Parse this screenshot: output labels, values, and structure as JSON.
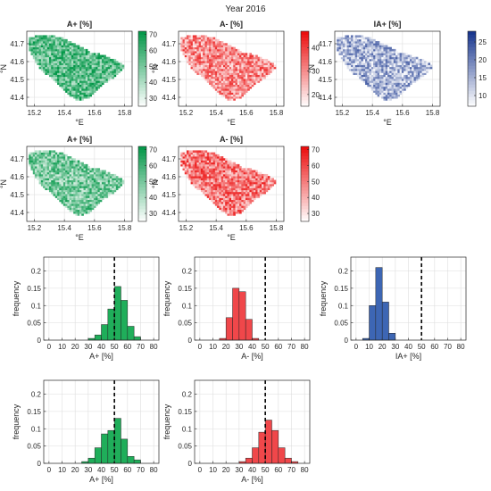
{
  "figure": {
    "title": "Year 2016"
  },
  "colors": {
    "green": "#1fae5a",
    "red": "#f0474a",
    "blue": "#3d66b4",
    "axis": "#262626",
    "grid": "#dedede",
    "dashed_line": "#000000"
  },
  "chart_data": [
    {
      "type": "heatmap",
      "id": "map_r1c1",
      "title": "A+ [%]",
      "xlabel": "°E",
      "ylabel": "°N",
      "xlim": [
        15.15,
        15.85
      ],
      "ylim": [
        41.35,
        41.77
      ],
      "xticks": [
        15.2,
        15.4,
        15.6,
        15.8
      ],
      "xtick_labels": [
        "15.2",
        "15.4",
        "15.6",
        "15.8"
      ],
      "yticks": [
        41.4,
        41.5,
        41.6,
        41.7
      ],
      "ytick_labels": [
        "41.4",
        "41.5",
        "41.6",
        "41.7"
      ],
      "colormap": "greens",
      "clim": [
        25,
        72
      ],
      "colorbar_ticks": [
        30,
        40,
        50,
        60,
        70
      ],
      "value_mean": 55,
      "grid": true
    },
    {
      "type": "heatmap",
      "id": "map_r1c2",
      "title": "A- [%]",
      "xlabel": "°E",
      "ylabel": "°N",
      "xlim": [
        15.15,
        15.85
      ],
      "ylim": [
        41.35,
        41.77
      ],
      "xticks": [
        15.2,
        15.4,
        15.6,
        15.8
      ],
      "xtick_labels": [
        "15.2",
        "15.4",
        "15.6",
        "15.8"
      ],
      "yticks": [
        41.4,
        41.5,
        41.6,
        41.7
      ],
      "ytick_labels": [
        "41.4",
        "41.5",
        "41.6",
        "41.7"
      ],
      "colormap": "reds",
      "clim": [
        15,
        47
      ],
      "colorbar_ticks": [
        20,
        30,
        40
      ],
      "value_mean": 30,
      "grid": true
    },
    {
      "type": "heatmap",
      "id": "map_r1c3",
      "title": "IA+ [%]",
      "xlabel": "°E",
      "ylabel": "°N",
      "xlim": [
        15.15,
        15.85
      ],
      "ylim": [
        41.35,
        41.77
      ],
      "xticks": [
        15.2,
        15.4,
        15.6,
        15.8
      ],
      "xtick_labels": [
        "15.2",
        "15.4",
        "15.6",
        "15.8"
      ],
      "yticks": [
        41.4,
        41.5,
        41.6,
        41.7
      ],
      "ytick_labels": [
        "41.4",
        "41.5",
        "41.6",
        "41.7"
      ],
      "colormap": "blues",
      "clim": [
        7,
        28
      ],
      "colorbar_ticks": [
        10,
        15,
        20,
        25
      ],
      "value_mean": 15,
      "grid": true
    },
    {
      "type": "heatmap",
      "id": "map_r2c1",
      "title": "A+ [%]",
      "xlabel": "°E",
      "ylabel": "°N",
      "xlim": [
        15.15,
        15.85
      ],
      "ylim": [
        41.35,
        41.77
      ],
      "xticks": [
        15.2,
        15.4,
        15.6,
        15.8
      ],
      "xtick_labels": [
        "15.2",
        "15.4",
        "15.6",
        "15.8"
      ],
      "yticks": [
        41.4,
        41.5,
        41.6,
        41.7
      ],
      "ytick_labels": [
        "41.4",
        "41.5",
        "41.6",
        "41.7"
      ],
      "colormap": "greens",
      "clim": [
        25,
        72
      ],
      "colorbar_ticks": [
        30,
        40,
        50,
        60,
        70
      ],
      "value_mean": 50,
      "grid": true
    },
    {
      "type": "heatmap",
      "id": "map_r2c2",
      "title": "A- [%]",
      "xlabel": "°E",
      "ylabel": "°N",
      "xlim": [
        15.15,
        15.85
      ],
      "ylim": [
        41.35,
        41.77
      ],
      "xticks": [
        15.2,
        15.4,
        15.6,
        15.8
      ],
      "xtick_labels": [
        "15.2",
        "15.4",
        "15.6",
        "15.8"
      ],
      "yticks": [
        41.4,
        41.5,
        41.6,
        41.7
      ],
      "ytick_labels": [
        "41.4",
        "41.5",
        "41.6",
        "41.7"
      ],
      "colormap": "reds",
      "clim": [
        25,
        72
      ],
      "colorbar_ticks": [
        30,
        40,
        50,
        60,
        70
      ],
      "value_mean": 50,
      "grid": true
    },
    {
      "type": "bar",
      "id": "hist_r3c1",
      "xlabel": "A+ [%]",
      "ylabel": "frequency",
      "xlim": [
        -4,
        84
      ],
      "ylim": [
        0,
        0.24
      ],
      "xticks": [
        0,
        10,
        20,
        30,
        40,
        50,
        60,
        70,
        80
      ],
      "xtick_labels": [
        "0",
        "10",
        "20",
        "30",
        "40",
        "50",
        "60",
        "70",
        "80"
      ],
      "yticks": [
        0,
        0.05,
        0.1,
        0.15,
        0.2
      ],
      "ytick_labels": [
        "0",
        "0.05",
        "0.1",
        "0.15",
        "0.2"
      ],
      "bin_edges": [
        30,
        35,
        40,
        45,
        50,
        55,
        60,
        65,
        70
      ],
      "values": [
        0.005,
        0.015,
        0.045,
        0.09,
        0.155,
        0.115,
        0.04,
        0.01
      ],
      "reference_line_x": 50,
      "color": "green",
      "grid": true
    },
    {
      "type": "bar",
      "id": "hist_r3c2",
      "xlabel": "A- [%]",
      "ylabel": "frequency",
      "xlim": [
        -4,
        84
      ],
      "ylim": [
        0,
        0.24
      ],
      "xticks": [
        0,
        10,
        20,
        30,
        40,
        50,
        60,
        70,
        80
      ],
      "xtick_labels": [
        "0",
        "10",
        "20",
        "30",
        "40",
        "50",
        "60",
        "70",
        "80"
      ],
      "yticks": [
        0,
        0.05,
        0.1,
        0.15,
        0.2
      ],
      "ytick_labels": [
        "0",
        "0.05",
        "0.1",
        "0.15",
        "0.2"
      ],
      "bin_edges": [
        15,
        20,
        25,
        30,
        35,
        40,
        45
      ],
      "values": [
        0.005,
        0.065,
        0.15,
        0.14,
        0.06,
        0.005
      ],
      "reference_line_x": 50,
      "color": "red",
      "grid": true
    },
    {
      "type": "bar",
      "id": "hist_r3c3",
      "xlabel": "IA+ [%]",
      "ylabel": "frequency",
      "xlim": [
        -4,
        84
      ],
      "ylim": [
        0,
        0.24
      ],
      "xticks": [
        0,
        10,
        20,
        30,
        40,
        50,
        60,
        70,
        80
      ],
      "xtick_labels": [
        "0",
        "10",
        "20",
        "30",
        "40",
        "50",
        "60",
        "70",
        "80"
      ],
      "yticks": [
        0,
        0.05,
        0.1,
        0.15,
        0.2
      ],
      "ytick_labels": [
        "0",
        "0.05",
        "0.1",
        "0.15",
        "0.2"
      ],
      "bin_edges": [
        5,
        10,
        15,
        20,
        25,
        30
      ],
      "values": [
        0.005,
        0.1,
        0.21,
        0.11,
        0.02
      ],
      "reference_line_x": 50,
      "color": "blue",
      "grid": true
    },
    {
      "type": "bar",
      "id": "hist_r4c1",
      "xlabel": "A+ [%]",
      "ylabel": "frequency",
      "xlim": [
        -4,
        84
      ],
      "ylim": [
        0,
        0.24
      ],
      "xticks": [
        0,
        10,
        20,
        30,
        40,
        50,
        60,
        70,
        80
      ],
      "xtick_labels": [
        "0",
        "10",
        "20",
        "30",
        "40",
        "50",
        "60",
        "70",
        "80"
      ],
      "yticks": [
        0,
        0.05,
        0.1,
        0.15,
        0.2
      ],
      "ytick_labels": [
        "0",
        "0.05",
        "0.1",
        "0.15",
        "0.2"
      ],
      "bin_edges": [
        25,
        30,
        35,
        40,
        45,
        50,
        55,
        60,
        65,
        70
      ],
      "values": [
        0.005,
        0.015,
        0.045,
        0.085,
        0.095,
        0.13,
        0.07,
        0.02,
        0.01
      ],
      "reference_line_x": 50,
      "color": "green",
      "grid": true
    },
    {
      "type": "bar",
      "id": "hist_r4c2",
      "xlabel": "A- [%]",
      "ylabel": "frequency",
      "xlim": [
        -4,
        84
      ],
      "ylim": [
        0,
        0.24
      ],
      "xticks": [
        0,
        10,
        20,
        30,
        40,
        50,
        60,
        70,
        80
      ],
      "xtick_labels": [
        "0",
        "10",
        "20",
        "30",
        "40",
        "50",
        "60",
        "70",
        "80"
      ],
      "yticks": [
        0,
        0.05,
        0.1,
        0.15,
        0.2
      ],
      "ytick_labels": [
        "0",
        "0.05",
        "0.1",
        "0.15",
        "0.2"
      ],
      "bin_edges": [
        30,
        35,
        40,
        45,
        50,
        55,
        60,
        65,
        70,
        75
      ],
      "values": [
        0.005,
        0.015,
        0.045,
        0.09,
        0.125,
        0.095,
        0.045,
        0.015,
        0.005
      ],
      "reference_line_x": 50,
      "color": "red",
      "grid": true
    }
  ]
}
